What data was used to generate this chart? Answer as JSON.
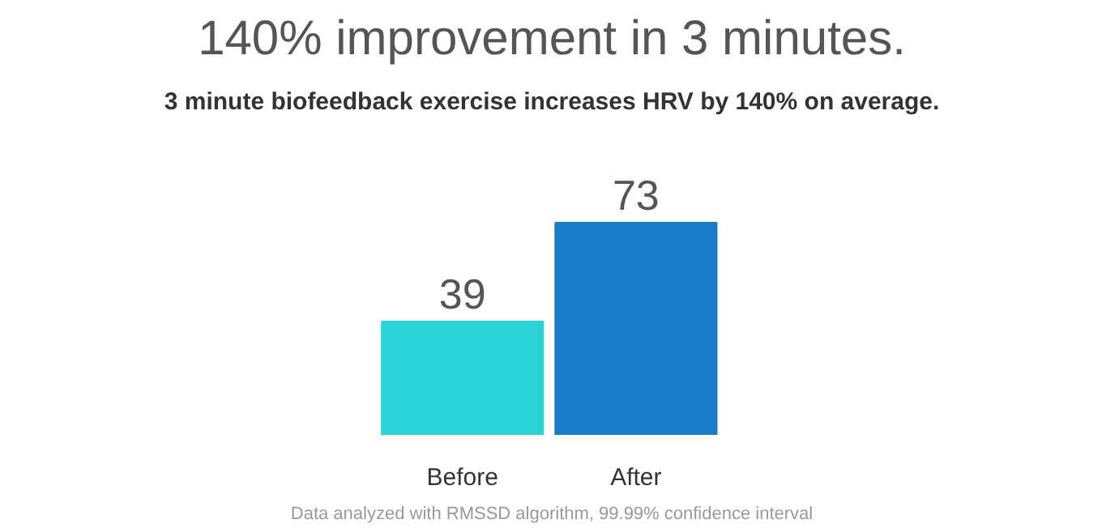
{
  "chart_data": {
    "type": "bar",
    "title": "140% improvement in 3 minutes.",
    "subtitle": "3 minute biofeedback exercise increases HRV by 140% on average.",
    "categories": [
      "Before",
      "After"
    ],
    "values": [
      39,
      73
    ],
    "colors": [
      "#29d3d6",
      "#1a7bc9"
    ],
    "data_labels": true,
    "grid": false,
    "annotations": [
      "Data analyzed with RMSSD algorithm, 99.99% confidence interval"
    ]
  }
}
